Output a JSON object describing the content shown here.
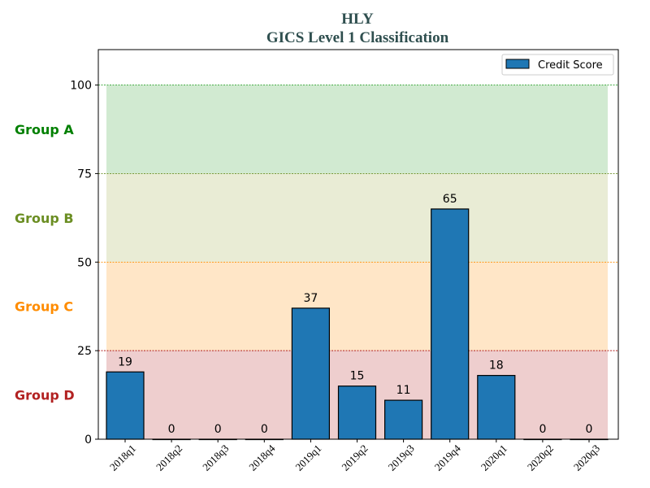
{
  "chart_data": {
    "type": "bar",
    "title": "HLY",
    "subtitle": "GICS Level 1 Classification",
    "title_color": "#2f4f4f",
    "categories": [
      "2018q1",
      "2018q2",
      "2018q3",
      "2018q4",
      "2019q1",
      "2019q2",
      "2019q3",
      "2019q4",
      "2020q1",
      "2020q2",
      "2020q3"
    ],
    "series": [
      {
        "name": "Credit Score",
        "color": "#1f77b4",
        "values": [
          19,
          0,
          0,
          0,
          37,
          15,
          11,
          65,
          18,
          0,
          0
        ]
      }
    ],
    "ylim": [
      0,
      110
    ],
    "yticks": [
      0,
      25,
      50,
      75,
      100
    ],
    "xlabel": "",
    "ylabel": "",
    "grid": false,
    "legend": {
      "placement": "top-right",
      "entries": [
        "Credit Score"
      ]
    },
    "bands": [
      {
        "label": "Group A",
        "from": 75,
        "to": 100,
        "fill": "#2ca02c",
        "label_color": "#008000",
        "line_color": "#2ca02c"
      },
      {
        "label": "Group B",
        "from": 50,
        "to": 75,
        "fill": "#9aa83f",
        "label_color": "#6b8e23",
        "line_color": "#6b8e23"
      },
      {
        "label": "Group C",
        "from": 25,
        "to": 50,
        "fill": "#ff8c00",
        "label_color": "#ff8c00",
        "line_color": "#ff8c00"
      },
      {
        "label": "Group D",
        "from": 0,
        "to": 25,
        "fill": "#b22222",
        "label_color": "#b22222",
        "line_color": "#b22222"
      }
    ]
  }
}
